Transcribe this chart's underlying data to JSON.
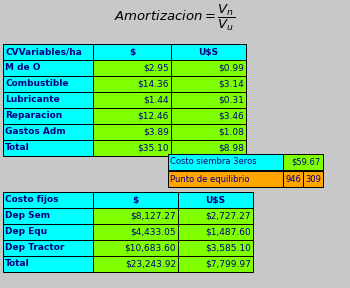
{
  "table1_header": [
    "CVVariables/ha",
    "$",
    "U$S"
  ],
  "table1_rows": [
    [
      "M de O",
      "$2.95",
      "$0.99"
    ],
    [
      "Combustible",
      "$14.36",
      "$3.14"
    ],
    [
      "Lubricante",
      "$1.44",
      "$0.31"
    ],
    [
      "Reparacion",
      "$12.46",
      "$3.46"
    ],
    [
      "Gastos Adm",
      "$3.89",
      "$1.08"
    ],
    [
      "Total",
      "$35.10",
      "$8.98"
    ]
  ],
  "info_row1_label": "Costo siembra 3eros",
  "info_row1_value": "$59.67",
  "info_row2_label": "Punto de equilibrio",
  "info_row2_val1": "946",
  "info_row2_val2": "309",
  "table2_header": [
    "Costo fijos",
    "$",
    "U$S"
  ],
  "table2_rows": [
    [
      "Dep Sem",
      "$8,127.27",
      "$2,727.27"
    ],
    [
      "Dep Equ",
      "$4,433.05",
      "$1,487.60"
    ],
    [
      "Dep Tractor",
      "$10,683.60",
      "$3,585.10"
    ],
    [
      "Total",
      "$23,243.92",
      "$7,799.97"
    ]
  ],
  "cyan": "#00FFFF",
  "green": "#80FF00",
  "orange": "#FFA500",
  "text_color": "#000080",
  "bg_color": "#C8C8C8",
  "title_color": "#000000"
}
